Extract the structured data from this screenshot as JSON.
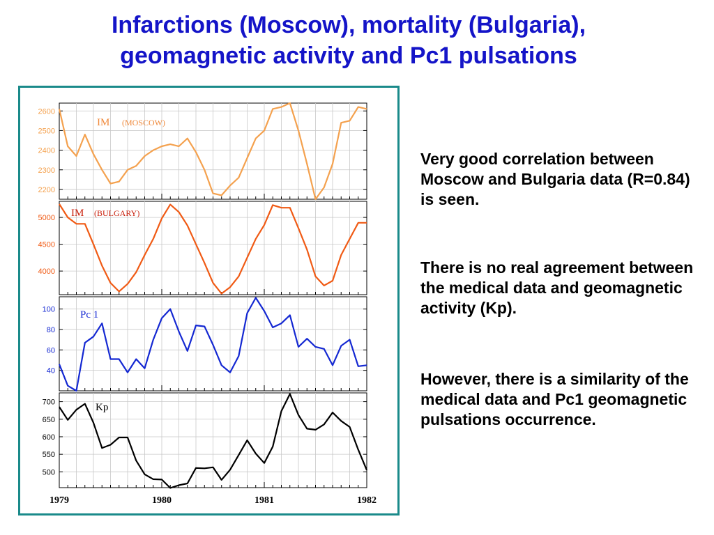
{
  "title": {
    "line1": "Infarctions (Moscow), mortality (Bulgaria),",
    "line2": "geomagnetic activity and Pc1 pulsations"
  },
  "text": {
    "p1": "Very good correlation between Moscow and Bulgaria data (R=0.84) is seen.",
    "p2": "There is no real agreement between the medical data and geomagnetic activity (Kp).",
    "p3": "However, there is a similarity of the medical data and Pc1 geomagnetic pulsations occurrence."
  },
  "x_axis": {
    "tick_labels": [
      "1979",
      "1980",
      "1981",
      "1982"
    ]
  },
  "chart_data": [
    {
      "type": "line",
      "label_main": "IM",
      "label_sub": "(MOSCOW)",
      "color": "#f4a14e",
      "grid": true,
      "xlim": [
        1979,
        1982
      ],
      "ylim": [
        2150,
        2640
      ],
      "yticks": [
        2200,
        2300,
        2400,
        2500,
        2600
      ],
      "x": [
        1979.0,
        1979.083,
        1979.167,
        1979.25,
        1979.333,
        1979.417,
        1979.5,
        1979.583,
        1979.667,
        1979.75,
        1979.833,
        1979.917,
        1980.0,
        1980.083,
        1980.167,
        1980.25,
        1980.333,
        1980.417,
        1980.5,
        1980.583,
        1980.667,
        1980.75,
        1980.833,
        1980.917,
        1981.0,
        1981.083,
        1981.167,
        1981.25,
        1981.333,
        1981.417,
        1981.5,
        1981.583,
        1981.667,
        1981.75,
        1981.833,
        1981.917,
        1982.0
      ],
      "y": [
        2610,
        2420,
        2370,
        2480,
        2380,
        2300,
        2230,
        2240,
        2300,
        2320,
        2370,
        2400,
        2420,
        2430,
        2420,
        2460,
        2390,
        2300,
        2180,
        2170,
        2220,
        2260,
        2360,
        2460,
        2500,
        2610,
        2620,
        2640,
        2500,
        2330,
        2150,
        2210,
        2330,
        2540,
        2550,
        2620,
        2610
      ]
    },
    {
      "type": "line",
      "label_main": "IM",
      "label_sub": "(BULGARY)",
      "color": "#f05a14",
      "grid": true,
      "xlim": [
        1979,
        1982
      ],
      "ylim": [
        3560,
        5300
      ],
      "yticks": [
        4000,
        4500,
        5000
      ],
      "x": [
        1979.0,
        1979.083,
        1979.167,
        1979.25,
        1979.333,
        1979.417,
        1979.5,
        1979.583,
        1979.667,
        1979.75,
        1979.833,
        1979.917,
        1980.0,
        1980.083,
        1980.167,
        1980.25,
        1980.333,
        1980.417,
        1980.5,
        1980.583,
        1980.667,
        1980.75,
        1980.833,
        1980.917,
        1981.0,
        1981.083,
        1981.167,
        1981.25,
        1981.333,
        1981.417,
        1981.5,
        1981.583,
        1981.667,
        1981.75,
        1981.833,
        1981.917,
        1982.0
      ],
      "y": [
        5250,
        5000,
        4880,
        4880,
        4500,
        4100,
        3780,
        3620,
        3760,
        3980,
        4300,
        4600,
        4980,
        5240,
        5100,
        4850,
        4500,
        4150,
        3780,
        3580,
        3700,
        3900,
        4250,
        4600,
        4860,
        5230,
        5180,
        5180,
        4800,
        4400,
        3900,
        3730,
        3820,
        4300,
        4600,
        4900,
        4900
      ]
    },
    {
      "type": "line",
      "label_main": "Pc 1",
      "color": "#1428d2",
      "grid": true,
      "xlim": [
        1979,
        1982
      ],
      "ylim": [
        20,
        112
      ],
      "yticks": [
        40,
        60,
        80,
        100
      ],
      "x": [
        1979.0,
        1979.083,
        1979.167,
        1979.25,
        1979.333,
        1979.417,
        1979.5,
        1979.583,
        1979.667,
        1979.75,
        1979.833,
        1979.917,
        1980.0,
        1980.083,
        1980.167,
        1980.25,
        1980.333,
        1980.417,
        1980.5,
        1980.583,
        1980.667,
        1980.75,
        1980.833,
        1980.917,
        1981.0,
        1981.083,
        1981.167,
        1981.25,
        1981.333,
        1981.417,
        1981.5,
        1981.583,
        1981.667,
        1981.75,
        1981.833,
        1981.917,
        1982.0
      ],
      "y": [
        46,
        25,
        20,
        67,
        73,
        86,
        51,
        51,
        38,
        51,
        42,
        70,
        91,
        100,
        78,
        59,
        84,
        83,
        65,
        45,
        38,
        54,
        96,
        111,
        98,
        82,
        86,
        94,
        63,
        71,
        63,
        61,
        45,
        64,
        70,
        44,
        45
      ]
    },
    {
      "type": "line",
      "label_main": "Kp",
      "color": "#000000",
      "grid": true,
      "xlim": [
        1979,
        1982
      ],
      "ylim": [
        455,
        725
      ],
      "yticks": [
        500,
        550,
        600,
        650,
        700
      ],
      "x": [
        1979.0,
        1979.083,
        1979.167,
        1979.25,
        1979.333,
        1979.417,
        1979.5,
        1979.583,
        1979.667,
        1979.75,
        1979.833,
        1979.917,
        1980.0,
        1980.083,
        1980.167,
        1980.25,
        1980.333,
        1980.417,
        1980.5,
        1980.583,
        1980.667,
        1980.75,
        1980.833,
        1980.917,
        1981.0,
        1981.083,
        1981.167,
        1981.25,
        1981.333,
        1981.417,
        1981.5,
        1981.583,
        1981.667,
        1981.75,
        1981.833,
        1981.917,
        1982.0
      ],
      "y": [
        685,
        648,
        677,
        694,
        640,
        568,
        577,
        598,
        598,
        532,
        493,
        479,
        478,
        454,
        462,
        467,
        511,
        510,
        513,
        477,
        506,
        548,
        590,
        552,
        525,
        572,
        673,
        722,
        662,
        623,
        620,
        635,
        669,
        645,
        628,
        563,
        505
      ]
    }
  ]
}
